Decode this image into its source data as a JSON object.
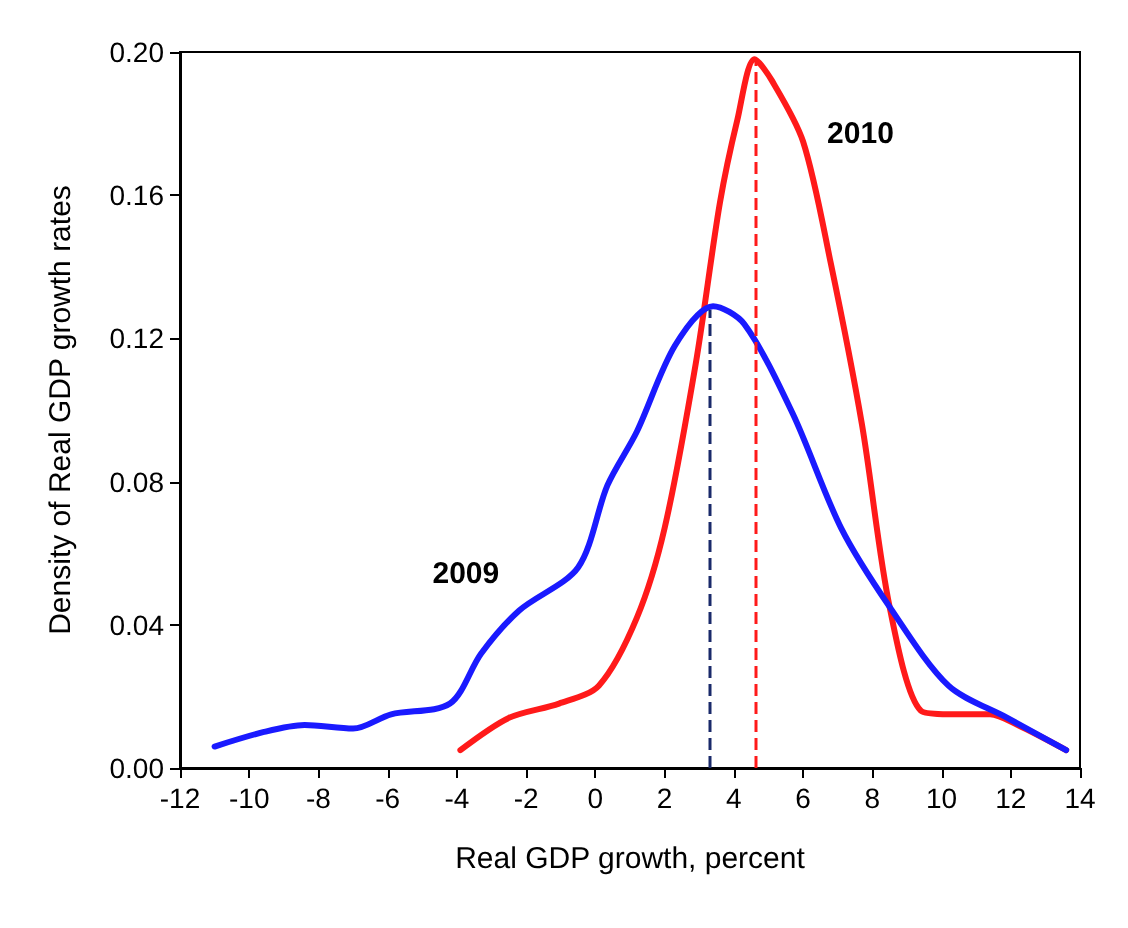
{
  "chart_data": {
    "type": "line",
    "xlabel": "Real GDP growth, percent",
    "ylabel": "Density of Real GDP growth rates",
    "xlim": [
      -12,
      14
    ],
    "xticks": [
      -12,
      -10,
      -8,
      -6,
      -4,
      -2,
      0,
      2,
      4,
      6,
      8,
      10,
      12,
      14
    ],
    "ylim": [
      0,
      0.2
    ],
    "yticks": [
      {
        "value": 0,
        "label": "0.00"
      },
      {
        "value": 0.04,
        "label": "0.04"
      },
      {
        "value": 0.08,
        "label": "0.08"
      },
      {
        "value": 0.12,
        "label": "0.12"
      },
      {
        "value": 0.16,
        "label": "0.16"
      },
      {
        "value": 0.2,
        "label": "0.20"
      }
    ],
    "series": [
      {
        "name": "2010",
        "color": "#ff1a1a",
        "x": [
          -3.9,
          -2.5,
          -1.05,
          0.1,
          1.2,
          2.0,
          2.9,
          3.6,
          4.1,
          4.6,
          5.1,
          6.0,
          6.8,
          7.7,
          8.5,
          9.4,
          10.2,
          11.4,
          12.2,
          13.6
        ],
        "values": [
          0.005,
          0.014,
          0.018,
          0.023,
          0.042,
          0.067,
          0.113,
          0.158,
          0.181,
          0.198,
          0.192,
          0.175,
          0.141,
          0.096,
          0.045,
          0.016,
          0.015,
          0.015,
          0.012,
          0.005
        ]
      },
      {
        "name": "2009",
        "color": "#1a1aff",
        "x": [
          -11.0,
          -9.6,
          -8.4,
          -7.0,
          -5.9,
          -4.2,
          -3.3,
          -2.2,
          -0.5,
          0.35,
          1.2,
          2.3,
          3.4,
          4.3,
          5.7,
          7.1,
          8.5,
          10.2,
          11.9,
          13.6
        ],
        "values": [
          0.006,
          0.01,
          0.012,
          0.011,
          0.015,
          0.018,
          0.032,
          0.044,
          0.056,
          0.079,
          0.094,
          0.118,
          0.129,
          0.124,
          0.099,
          0.067,
          0.045,
          0.023,
          0.014,
          0.005
        ]
      }
    ],
    "ref_lines": [
      {
        "axis": "x",
        "value": 3.3,
        "color": "#1a2a6a",
        "line_style": "dashed"
      },
      {
        "axis": "x",
        "value": 4.6,
        "color": "#ff1a1a",
        "line_style": "dashed"
      }
    ],
    "grid": false,
    "legend": false,
    "marker": "none",
    "line_style": "solid"
  }
}
